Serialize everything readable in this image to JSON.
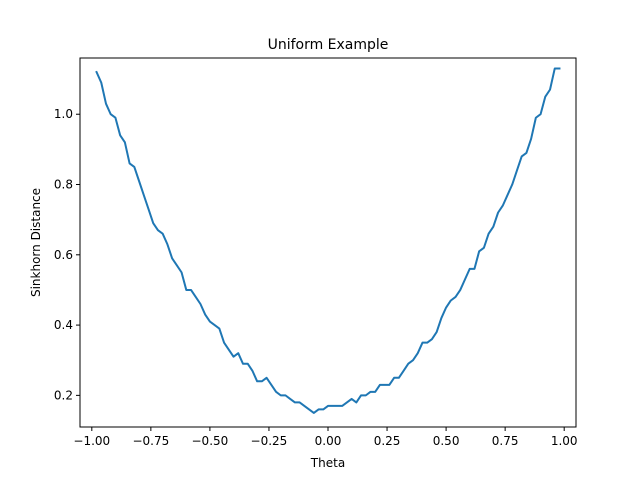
{
  "chart_data": {
    "type": "line",
    "title": "Uniform Example",
    "xlabel": "Theta",
    "ylabel": "Sinkhorn Distance",
    "xlim": [
      -1.05,
      1.05
    ],
    "ylim": [
      0.11,
      1.16
    ],
    "xticks": [
      -1.0,
      -0.75,
      -0.5,
      -0.25,
      0.0,
      0.25,
      0.5,
      0.75,
      1.0
    ],
    "xtick_labels": [
      "−1.00",
      "−0.75",
      "−0.50",
      "−0.25",
      "0.00",
      "0.25",
      "0.50",
      "0.75",
      "1.00"
    ],
    "yticks": [
      0.2,
      0.4,
      0.6,
      0.8,
      1.0
    ],
    "ytick_labels": [
      "0.2",
      "0.4",
      "0.6",
      "0.8",
      "1.0"
    ],
    "grid": false,
    "legend": "none",
    "series": [
      {
        "color": "#1f77b4",
        "x": [
          -0.98,
          -0.96,
          -0.94,
          -0.92,
          -0.9,
          -0.88,
          -0.86,
          -0.84,
          -0.82,
          -0.8,
          -0.78,
          -0.76,
          -0.74,
          -0.72,
          -0.7,
          -0.68,
          -0.66,
          -0.64,
          -0.62,
          -0.6,
          -0.58,
          -0.56,
          -0.54,
          -0.52,
          -0.5,
          -0.48,
          -0.46,
          -0.44,
          -0.42,
          -0.4,
          -0.38,
          -0.36,
          -0.34,
          -0.32,
          -0.3,
          -0.28,
          -0.26,
          -0.24,
          -0.22,
          -0.2,
          -0.18,
          -0.16,
          -0.14,
          -0.12,
          -0.1,
          -0.08,
          -0.06,
          -0.04,
          -0.02,
          0.0,
          0.02,
          0.04,
          0.06,
          0.08,
          0.1,
          0.12,
          0.14,
          0.16,
          0.18,
          0.2,
          0.22,
          0.24,
          0.26,
          0.28,
          0.3,
          0.32,
          0.34,
          0.36,
          0.38,
          0.4,
          0.42,
          0.44,
          0.46,
          0.48,
          0.5,
          0.52,
          0.54,
          0.56,
          0.58,
          0.6,
          0.62,
          0.64,
          0.66,
          0.68,
          0.7,
          0.72,
          0.74,
          0.76,
          0.78,
          0.8,
          0.82,
          0.84,
          0.86,
          0.88,
          0.9,
          0.92,
          0.94,
          0.96,
          0.98
        ],
        "y": [
          1.12,
          1.09,
          1.03,
          1.0,
          0.99,
          0.94,
          0.92,
          0.86,
          0.85,
          0.81,
          0.77,
          0.73,
          0.69,
          0.67,
          0.66,
          0.63,
          0.59,
          0.57,
          0.55,
          0.5,
          0.5,
          0.48,
          0.46,
          0.43,
          0.41,
          0.4,
          0.39,
          0.35,
          0.33,
          0.31,
          0.32,
          0.29,
          0.29,
          0.27,
          0.24,
          0.24,
          0.25,
          0.23,
          0.21,
          0.2,
          0.2,
          0.19,
          0.18,
          0.18,
          0.17,
          0.16,
          0.15,
          0.16,
          0.16,
          0.17,
          0.17,
          0.17,
          0.17,
          0.18,
          0.19,
          0.18,
          0.2,
          0.2,
          0.21,
          0.21,
          0.23,
          0.23,
          0.23,
          0.25,
          0.25,
          0.27,
          0.29,
          0.3,
          0.32,
          0.35,
          0.35,
          0.36,
          0.38,
          0.42,
          0.45,
          0.47,
          0.48,
          0.5,
          0.53,
          0.56,
          0.56,
          0.61,
          0.62,
          0.66,
          0.68,
          0.72,
          0.74,
          0.77,
          0.8,
          0.84,
          0.88,
          0.89,
          0.93,
          0.99,
          1.0,
          1.05,
          1.07,
          1.13,
          1.13
        ]
      }
    ]
  }
}
